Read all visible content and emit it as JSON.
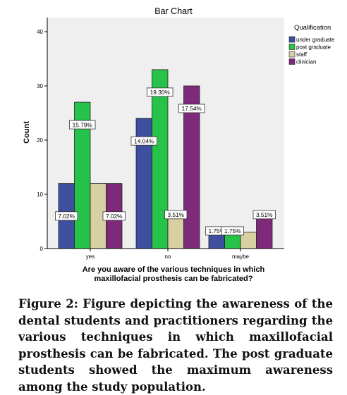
{
  "chart_data": {
    "type": "bar",
    "title": "Bar Chart",
    "xlabel": "Are you aware of the various techniques in which maxillofacial prosthesis  can be fabricated?",
    "xlabel_lines": [
      "Are you aware of the various techniques in which",
      "maxillofacial prosthesis  can be fabricated?"
    ],
    "ylabel": "Count",
    "ylim": [
      0,
      40
    ],
    "yticks": [
      0,
      10,
      20,
      30,
      40
    ],
    "categories": [
      "yes",
      "no",
      "maybe"
    ],
    "legend_title": "Qualification",
    "legend_position": "top-right",
    "grid": false,
    "series": [
      {
        "name": "under graduate",
        "color": "#3e4fa0",
        "values": [
          12,
          24,
          3
        ],
        "labels": [
          "7.02%",
          "14.04%",
          "1.75%"
        ]
      },
      {
        "name": "post graduate",
        "color": "#27c24a",
        "values": [
          27,
          33,
          3
        ],
        "labels": [
          "15.79%",
          "19.30%",
          "1.75%"
        ]
      },
      {
        "name": "staff",
        "color": "#d7d0a2",
        "values": [
          12,
          6,
          3
        ],
        "labels": [
          "",
          "3.51%",
          ""
        ]
      },
      {
        "name": "clinician",
        "color": "#7d2a7a",
        "values": [
          12,
          30,
          6
        ],
        "labels": [
          "7.02%",
          "17.54%",
          "3.51%"
        ]
      }
    ]
  },
  "caption": "Figure 2: Figure depicting the awareness of the dental students and practitioners regarding the various techniques in which maxillofacial prosthesis can be fabricated. The post graduate students showed the maximum awareness among the study population."
}
